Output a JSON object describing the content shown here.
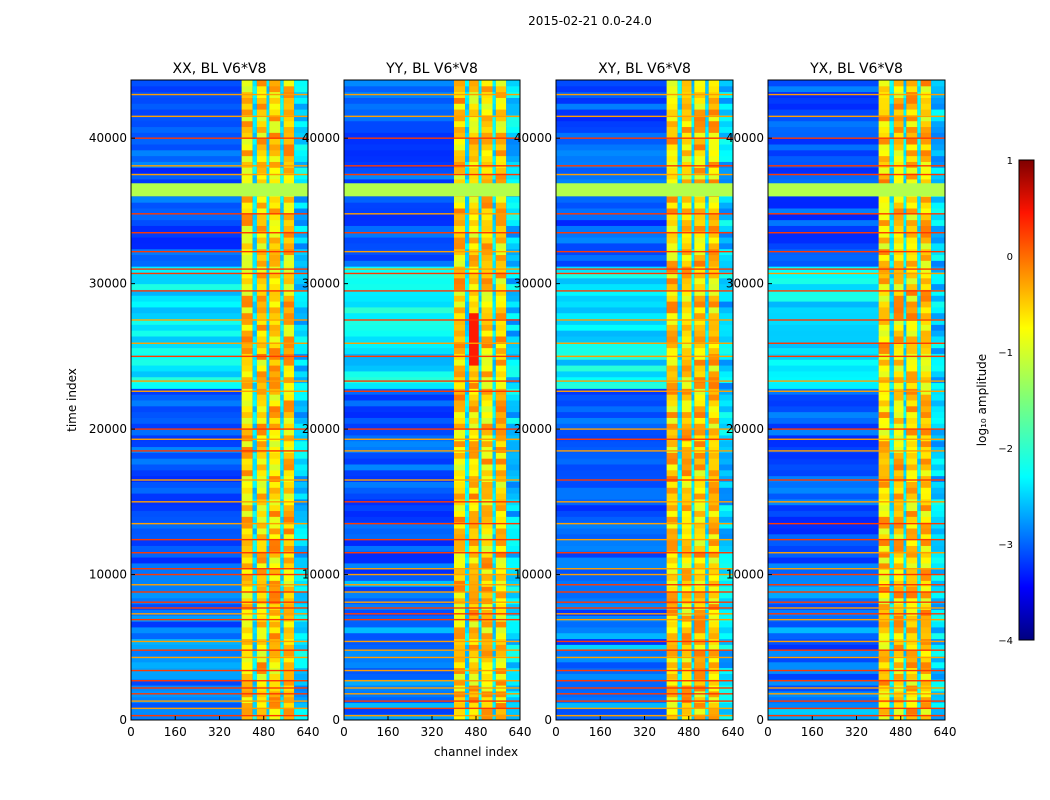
{
  "chart_data": {
    "type": "heatmap",
    "suptitle": "2015-02-21 0.0-24.0",
    "xlabel": "channel index",
    "ylabel": "time index",
    "xlim": [
      0,
      640
    ],
    "ylim": [
      0,
      44000
    ],
    "xticks": [
      0,
      160,
      320,
      480,
      640
    ],
    "yticks": [
      0,
      10000,
      20000,
      30000,
      40000
    ],
    "panels": [
      {
        "title": "XX, BL V6*V8",
        "polarization": "XX"
      },
      {
        "title": "YY, BL V6*V8",
        "polarization": "YY"
      },
      {
        "title": "XY, BL V6*V8",
        "polarization": "XY"
      },
      {
        "title": "YX, BL V6*V8",
        "polarization": "YX"
      }
    ],
    "colorbar": {
      "label": "log₁₀ amplitude",
      "range": [
        -4,
        1
      ],
      "ticks": [
        1,
        0,
        -1,
        -2,
        -3,
        -4
      ],
      "tick_labels": [
        "1",
        "0",
        "−1",
        "−2",
        "−3",
        "−4"
      ],
      "colormap": "jet"
    },
    "features": {
      "bright_channel_band": [
        400,
        590
      ],
      "saturated_time_band": [
        36000,
        36900
      ],
      "high_level_time_band": [
        22500,
        31000
      ]
    }
  }
}
